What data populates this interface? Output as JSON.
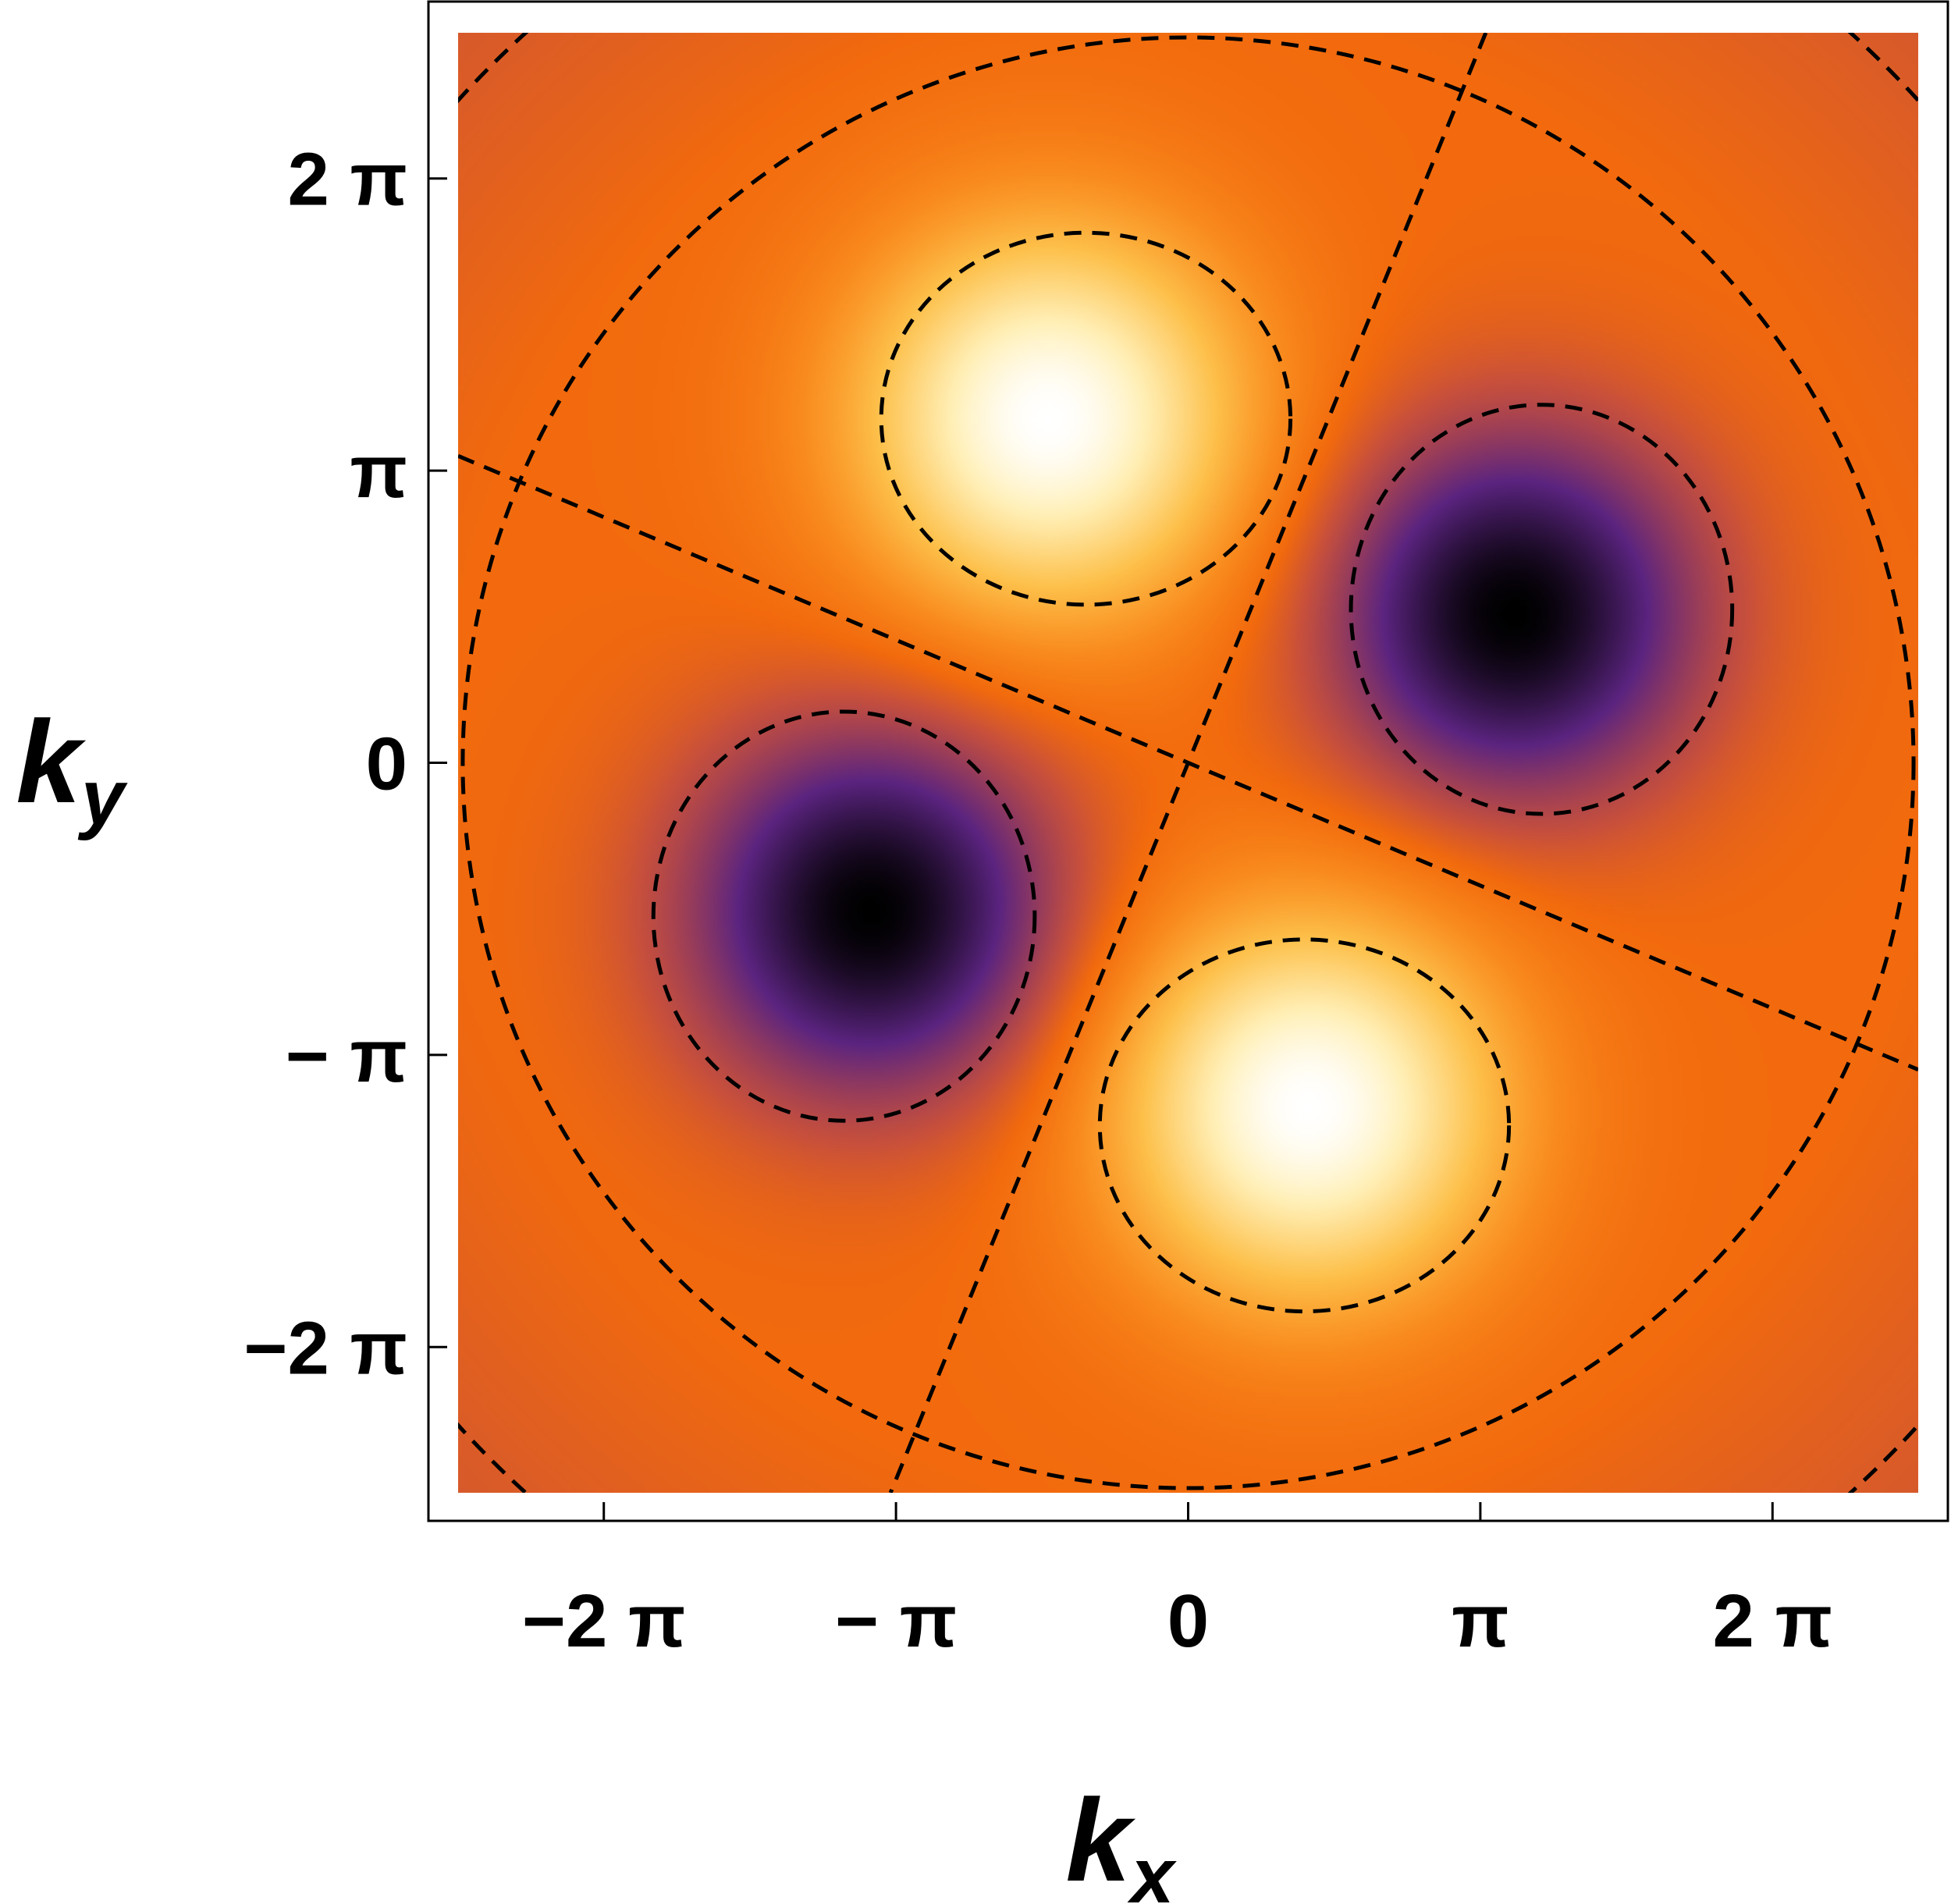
{
  "chart_data": {
    "type": "heatmap",
    "title": "",
    "xlabel": {
      "base": "k",
      "sub": "x"
    },
    "ylabel": {
      "base": "k",
      "sub": "y"
    },
    "xlim": [
      -7.85,
      7.85
    ],
    "ylim": [
      -7.85,
      7.85
    ],
    "x_ticks": [
      {
        "value": -6.2832,
        "label": "−2 π"
      },
      {
        "value": -3.1416,
        "label": "− π"
      },
      {
        "value": 0,
        "label": "0"
      },
      {
        "value": 3.1416,
        "label": "π"
      },
      {
        "value": 6.2832,
        "label": "2 π"
      }
    ],
    "y_ticks": [
      {
        "value": -6.2832,
        "label": "−2 π"
      },
      {
        "value": -3.1416,
        "label": "− π"
      },
      {
        "value": 0,
        "label": "0"
      },
      {
        "value": 3.1416,
        "label": "π"
      },
      {
        "value": 6.2832,
        "label": "2 π"
      }
    ],
    "colormap": [
      "#000000",
      "#5b2480",
      "#c8503c",
      "#f26a0d",
      "#f98b1e",
      "#fdc04a",
      "#fff0b8",
      "#ffffff"
    ],
    "field": {
      "description": "two positive lobes (upper-left, lower-right) and two negative lobes (upper-right, lower-left) on a constant background",
      "background": 0.46,
      "lobes": [
        {
          "kx": -1.5,
          "ky": 3.7,
          "amplitude": 0.54,
          "sigma": 1.45
        },
        {
          "kx": 1.3,
          "ky": -3.7,
          "amplitude": 0.54,
          "sigma": 1.45
        },
        {
          "kx": 3.5,
          "ky": 1.6,
          "amplitude": -0.46,
          "sigma": 1.35
        },
        {
          "kx": -3.4,
          "ky": -1.6,
          "amplitude": -0.46,
          "sigma": 1.35
        }
      ]
    },
    "dashed_contours": {
      "circles": [
        {
          "cx": 0,
          "cy": 0,
          "r": 7.8
        }
      ],
      "arcs": [
        {
          "cx": 0,
          "cy": 0,
          "r": 10.6
        }
      ],
      "lines": [
        {
          "x1": -7.85,
          "y1": 3.3,
          "x2": 7.85,
          "y2": -3.3
        },
        {
          "x1": 3.2,
          "y1": 7.85,
          "x2": -3.2,
          "y2": -7.85
        }
      ],
      "positive_loops": [
        {
          "cx": -1.1,
          "cy": 3.7,
          "rx": 2.2,
          "ry": 2.0
        },
        {
          "cx": 1.25,
          "cy": -3.9,
          "rx": 2.2,
          "ry": 2.0
        }
      ],
      "negative_loops": [
        {
          "cx": 3.8,
          "cy": 1.65,
          "rx": 2.05,
          "ry": 2.2
        },
        {
          "cx": -3.7,
          "cy": -1.65,
          "rx": 2.05,
          "ry": 2.2
        }
      ]
    }
  }
}
